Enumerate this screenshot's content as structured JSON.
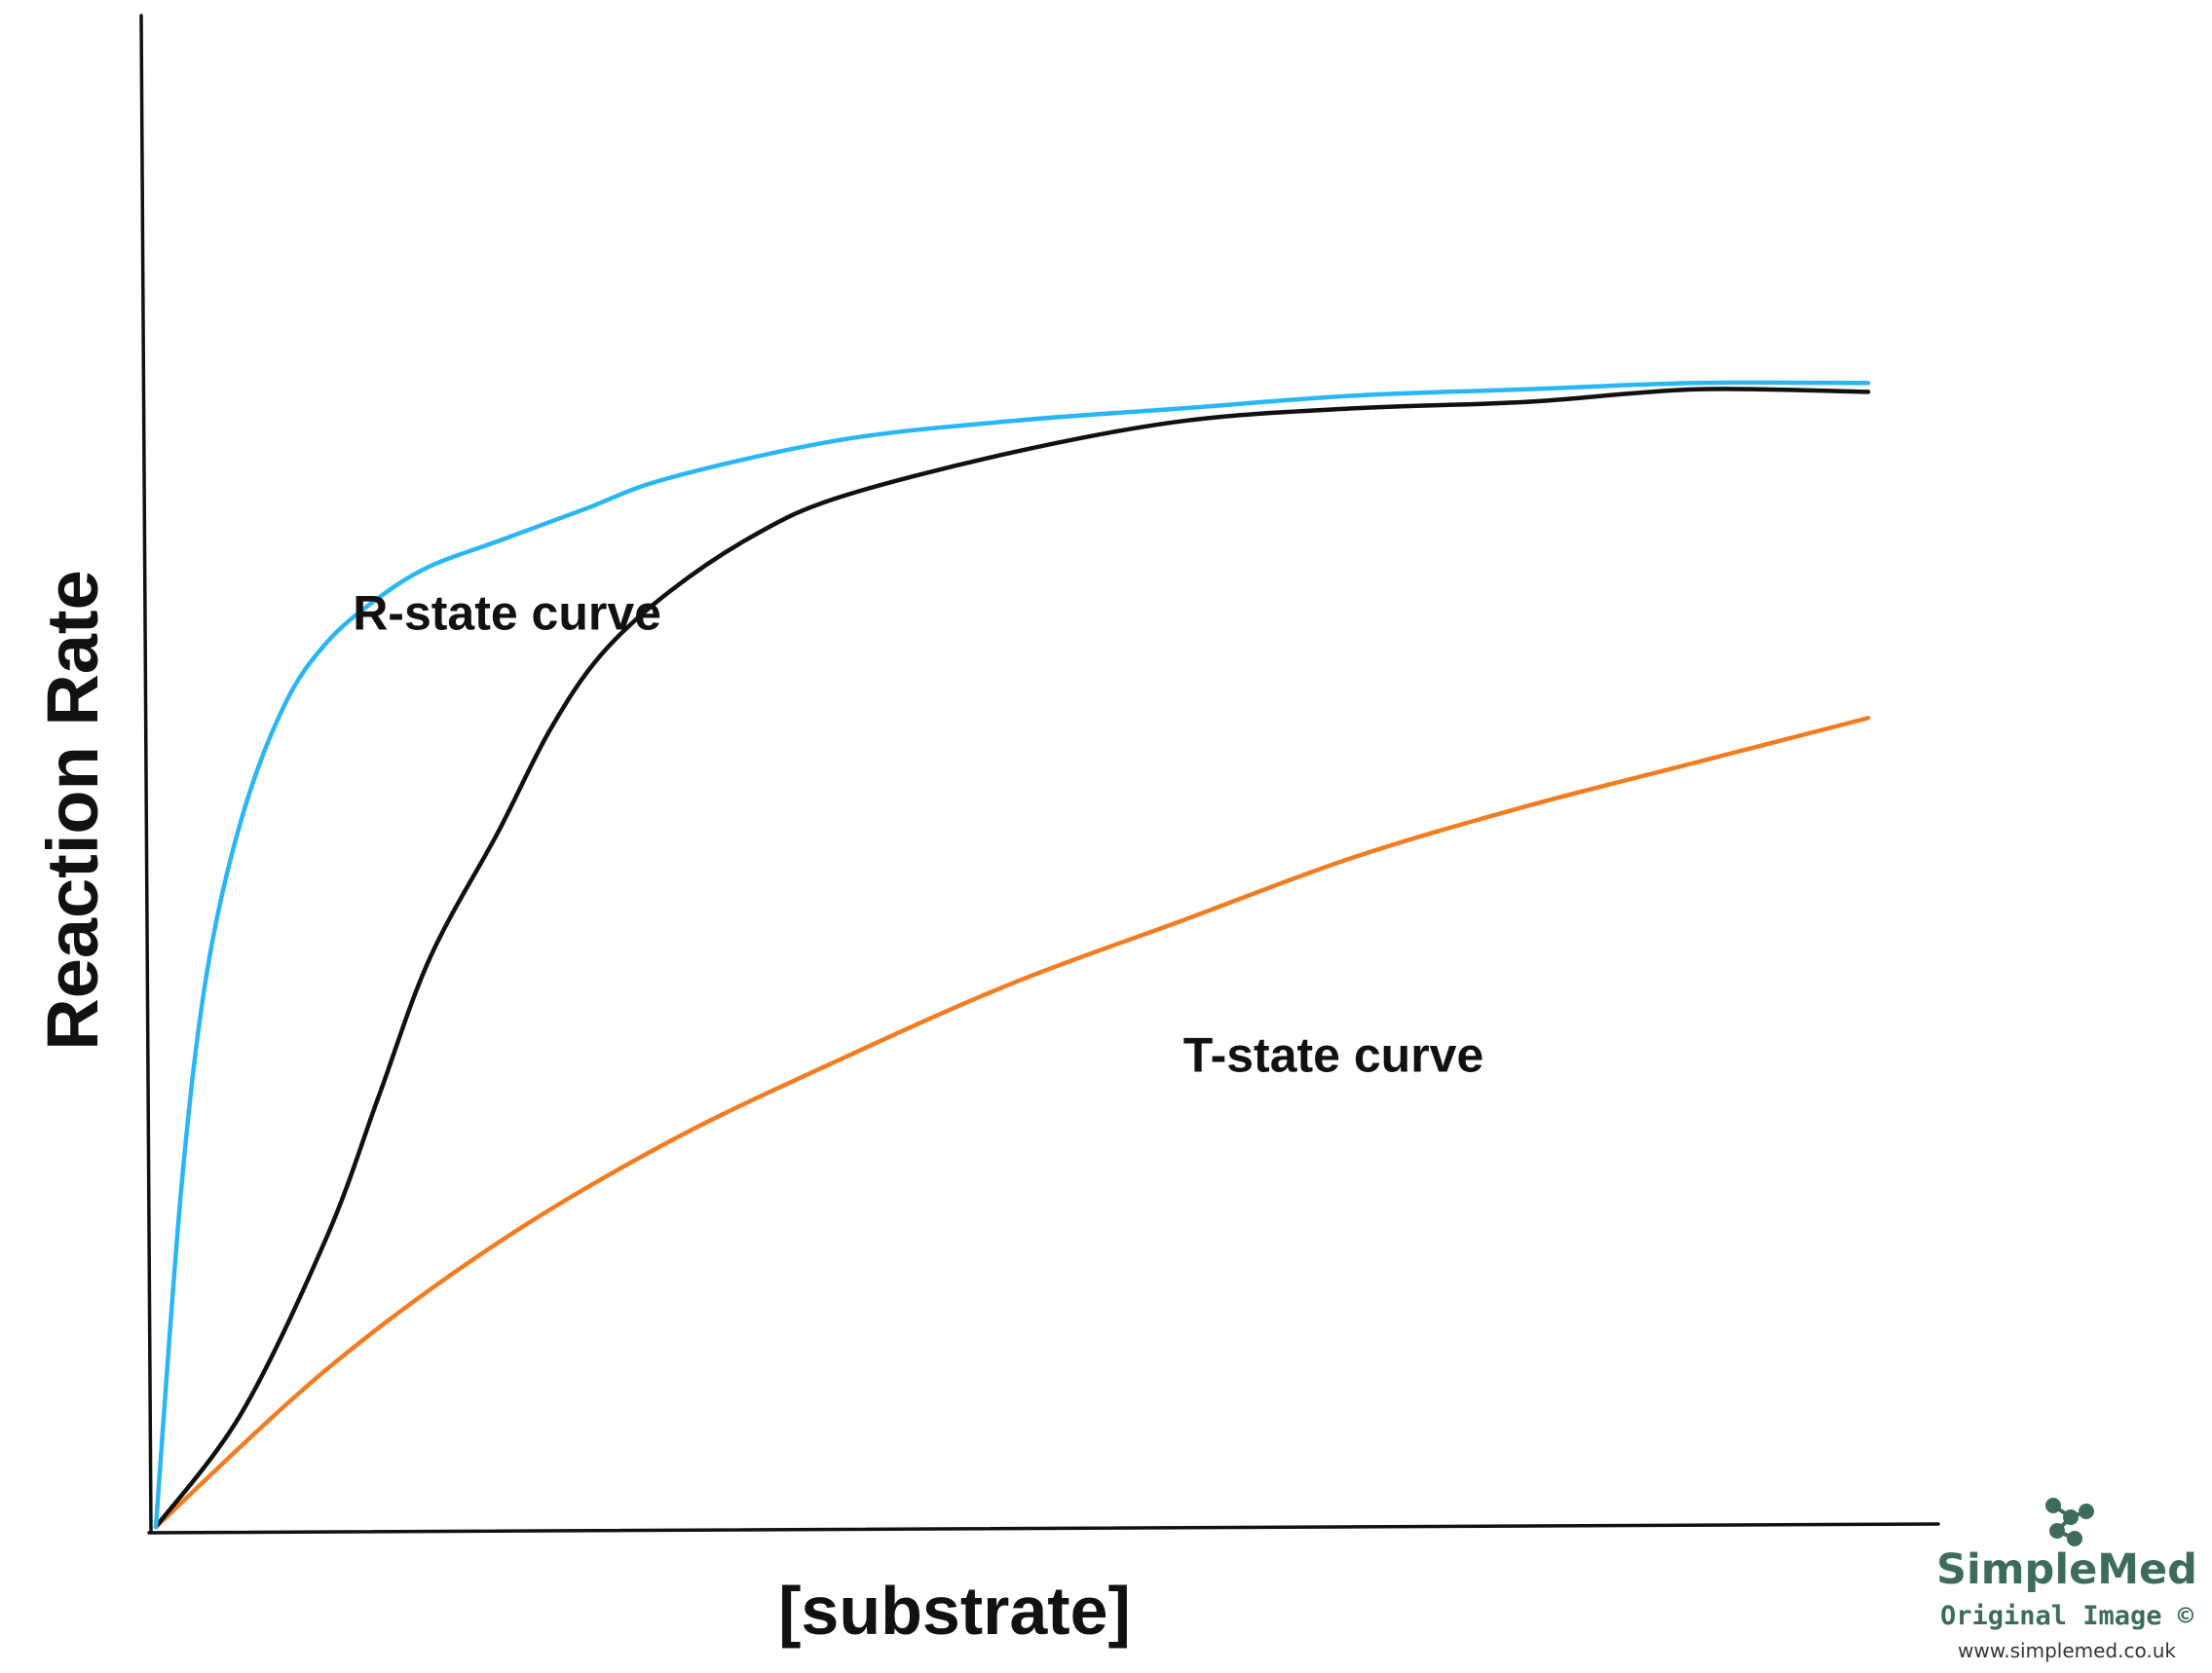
{
  "chart_data": {
    "type": "line",
    "title": "",
    "xlabel": "[substrate]",
    "ylabel": "Reaction Rate",
    "xlim": [
      0,
      10
    ],
    "ylim": [
      0,
      10
    ],
    "grid": false,
    "legend": "none",
    "series": [
      {
        "key": "r_state",
        "color": "#29b6f6",
        "x": [
          0,
          0.15,
          0.3,
          0.5,
          0.75,
          1.0,
          1.3,
          1.6,
          2.0,
          2.5,
          3.0,
          4.0,
          5.0,
          6.0,
          7.0,
          8.0,
          9.0,
          10.0
        ],
        "y": [
          0,
          2.7,
          4.4,
          5.6,
          6.5,
          7.0,
          7.35,
          7.6,
          7.8,
          8.05,
          8.3,
          8.6,
          8.75,
          8.85,
          8.95,
          9.0,
          9.05,
          9.05
        ]
      },
      {
        "key": "sigmoid",
        "color": "#111111",
        "x": [
          0,
          0.5,
          1.0,
          1.3,
          1.6,
          2.0,
          2.3,
          2.6,
          3.0,
          3.5,
          4.0,
          5.0,
          6.0,
          7.0,
          8.0,
          9.0,
          10.0
        ],
        "y": [
          0,
          0.9,
          2.3,
          3.4,
          4.5,
          5.5,
          6.3,
          6.9,
          7.4,
          7.85,
          8.15,
          8.5,
          8.75,
          8.85,
          8.9,
          9.0,
          8.98
        ]
      },
      {
        "key": "t_state",
        "color": "#f47c20",
        "x": [
          0,
          1.0,
          2.0,
          3.0,
          4.0,
          5.0,
          6.0,
          7.0,
          8.0,
          9.0,
          10.0
        ],
        "y": [
          0,
          1.25,
          2.25,
          3.05,
          3.7,
          4.3,
          4.8,
          5.3,
          5.7,
          6.05,
          6.4
        ]
      }
    ],
    "annotations": [
      {
        "key": "r_label",
        "text": "R-state curve",
        "x": 1.15,
        "y": 7.1
      },
      {
        "key": "t_label",
        "text": "T-state curve",
        "x": 6.0,
        "y": 3.6
      }
    ]
  },
  "watermark": {
    "brand": "SimpleMed",
    "subtitle": "Original Image ©",
    "url": "www.simplemed.co.uk",
    "color": "#3d6b5e"
  }
}
